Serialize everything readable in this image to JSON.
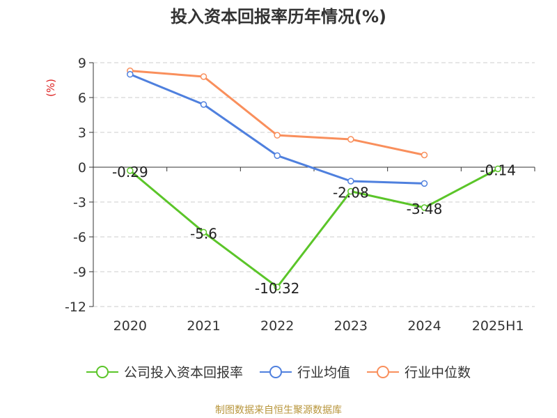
{
  "chart_data": {
    "type": "line",
    "title": "投入资本回报率历年情况(%)",
    "ylabel": "(%)",
    "categories": [
      "2020",
      "2021",
      "2022",
      "2023",
      "2024",
      "2025H1"
    ],
    "ylim": [
      -12,
      9
    ],
    "yticks": [
      9,
      6,
      3,
      0,
      -3,
      -6,
      -9,
      -12
    ],
    "grid": true,
    "legend_position": "bottom",
    "series": [
      {
        "name": "公司投入资本回报率",
        "color": "#5bc529",
        "values": [
          -0.29,
          -5.6,
          -10.32,
          -2.08,
          -3.48,
          -0.14
        ],
        "labels": [
          "-0.29",
          "-5.6",
          "-10.32",
          "-2.08",
          "-3.48",
          "-0.14"
        ]
      },
      {
        "name": "行业均值",
        "color": "#4f80de",
        "values": [
          8.0,
          5.4,
          1.0,
          -1.2,
          -1.4,
          null
        ]
      },
      {
        "name": "行业中位数",
        "color": "#f98f5c",
        "values": [
          8.3,
          7.8,
          2.75,
          2.4,
          1.05,
          null
        ]
      }
    ]
  },
  "source": "制图数据来自恒生聚源数据库"
}
